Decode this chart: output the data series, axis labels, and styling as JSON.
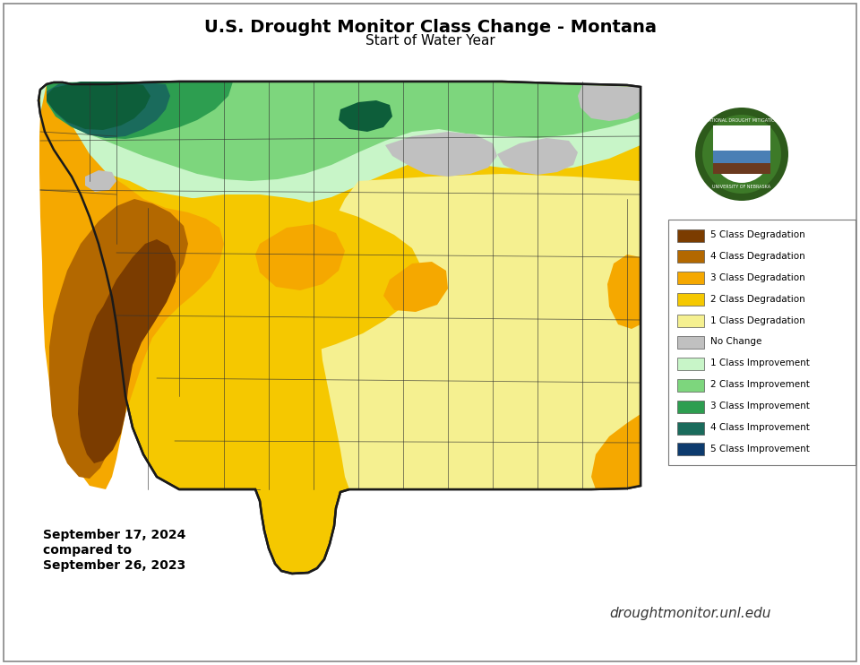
{
  "title": "U.S. Drought Monitor Class Change - Montana",
  "subtitle": "Start of Water Year",
  "date_text": "September 17, 2024\ncompared to\nSeptember 26, 2023",
  "website": "droughtmonitor.unl.edu",
  "bg_color": "#ffffff",
  "legend_items": [
    {
      "label": "5 Class Degradation",
      "color": "#7b3c00"
    },
    {
      "label": "4 Class Degradation",
      "color": "#b36800"
    },
    {
      "label": "3 Class Degradation",
      "color": "#f5a800"
    },
    {
      "label": "2 Class Degradation",
      "color": "#f5c800"
    },
    {
      "label": "1 Class Degradation",
      "color": "#f5f090"
    },
    {
      "label": "No Change",
      "color": "#c0c0c0"
    },
    {
      "label": "1 Class Improvement",
      "color": "#c8f5c8"
    },
    {
      "label": "2 Class Improvement",
      "color": "#7dd67d"
    },
    {
      "label": "3 Class Improvement",
      "color": "#2d9e50"
    },
    {
      "label": "4 Class Improvement",
      "color": "#1a6b5c"
    },
    {
      "label": "5 Class Improvement",
      "color": "#0d3b6e"
    }
  ]
}
